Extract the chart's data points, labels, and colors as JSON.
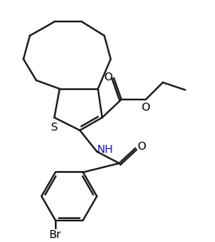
{
  "bg_color": "#ffffff",
  "bond_color": "#1a1a1a",
  "S_color": "#1a1a1a",
  "N_color": "#1a1aaa",
  "O_color": "#1a1a1a",
  "Br_color": "#1a1a1a",
  "line_width": 1.6,
  "figsize": [
    2.7,
    3.04
  ],
  "dpi": 100,
  "xlim": [
    0,
    10
  ],
  "ylim": [
    0,
    11.2
  ]
}
